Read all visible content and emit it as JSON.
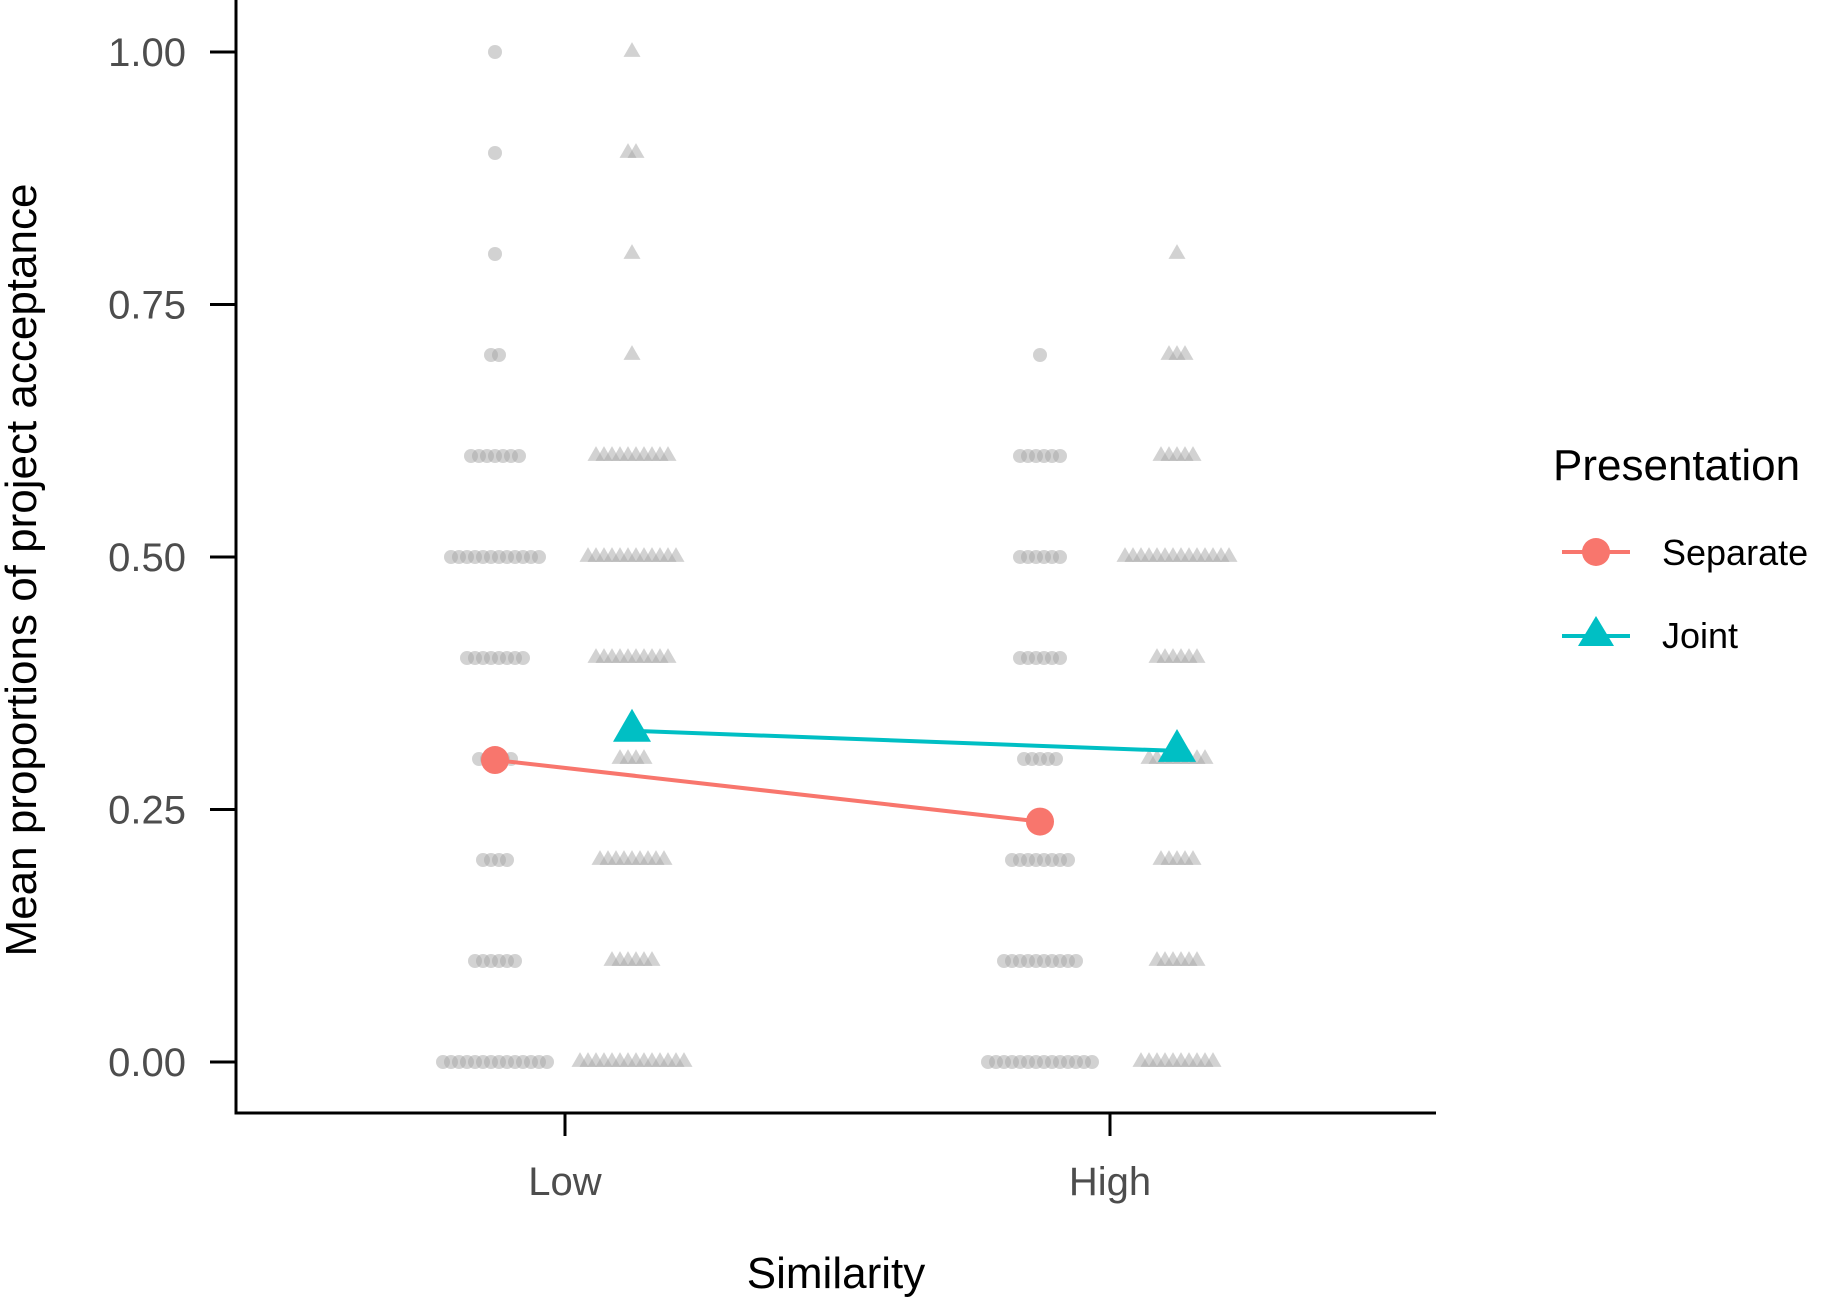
{
  "chart_data": {
    "type": "scatter",
    "title": "",
    "xlabel": "Similarity",
    "ylabel": "Mean proportions of project acceptance",
    "categories": [
      "Low",
      "High"
    ],
    "ylim": [
      -0.05,
      1.05
    ],
    "yticks": [
      0.0,
      0.25,
      0.5,
      0.75,
      1.0
    ],
    "ytick_labels": [
      "0.00",
      "0.25",
      "0.50",
      "0.75",
      "1.00"
    ],
    "grid": false,
    "legend": {
      "title": "Presentation",
      "placement": "right",
      "entries": [
        {
          "label": "Separate",
          "color": "#F8766D",
          "shape": "circle"
        },
        {
          "label": "Joint",
          "color": "#00BFC4",
          "shape": "triangle"
        }
      ]
    },
    "series": [
      {
        "name": "Separate",
        "color": "#F8766D",
        "shape": "circle",
        "values": [
          0.299,
          0.238
        ]
      },
      {
        "name": "Joint",
        "color": "#00BFC4",
        "shape": "triangle",
        "values": [
          0.328,
          0.308
        ]
      }
    ],
    "raw_points": {
      "color": "#a6a6a6",
      "groups": [
        {
          "category": "Low",
          "presentation": "Separate",
          "shape": "circle",
          "counts": [
            {
              "y": 0.0,
              "n": 14
            },
            {
              "y": 0.1,
              "n": 6
            },
            {
              "y": 0.2,
              "n": 4
            },
            {
              "y": 0.3,
              "n": 5
            },
            {
              "y": 0.4,
              "n": 8
            },
            {
              "y": 0.5,
              "n": 12
            },
            {
              "y": 0.6,
              "n": 7
            },
            {
              "y": 0.7,
              "n": 2
            },
            {
              "y": 0.8,
              "n": 1
            },
            {
              "y": 0.9,
              "n": 1
            },
            {
              "y": 1.0,
              "n": 1
            }
          ]
        },
        {
          "category": "Low",
          "presentation": "Joint",
          "shape": "triangle",
          "counts": [
            {
              "y": 0.0,
              "n": 14
            },
            {
              "y": 0.1,
              "n": 6
            },
            {
              "y": 0.2,
              "n": 9
            },
            {
              "y": 0.3,
              "n": 4
            },
            {
              "y": 0.4,
              "n": 10
            },
            {
              "y": 0.5,
              "n": 12
            },
            {
              "y": 0.6,
              "n": 10
            },
            {
              "y": 0.7,
              "n": 1
            },
            {
              "y": 0.8,
              "n": 1
            },
            {
              "y": 0.9,
              "n": 2
            },
            {
              "y": 1.0,
              "n": 1
            }
          ]
        },
        {
          "category": "High",
          "presentation": "Separate",
          "shape": "circle",
          "counts": [
            {
              "y": 0.0,
              "n": 14
            },
            {
              "y": 0.1,
              "n": 10
            },
            {
              "y": 0.2,
              "n": 8
            },
            {
              "y": 0.3,
              "n": 5
            },
            {
              "y": 0.4,
              "n": 6
            },
            {
              "y": 0.5,
              "n": 6
            },
            {
              "y": 0.6,
              "n": 6
            },
            {
              "y": 0.7,
              "n": 1
            }
          ]
        },
        {
          "category": "High",
          "presentation": "Joint",
          "shape": "triangle",
          "counts": [
            {
              "y": 0.0,
              "n": 10
            },
            {
              "y": 0.1,
              "n": 6
            },
            {
              "y": 0.2,
              "n": 5
            },
            {
              "y": 0.3,
              "n": 8
            },
            {
              "y": 0.4,
              "n": 6
            },
            {
              "y": 0.5,
              "n": 14
            },
            {
              "y": 0.6,
              "n": 5
            },
            {
              "y": 0.7,
              "n": 3
            },
            {
              "y": 0.8,
              "n": 1
            }
          ]
        }
      ]
    }
  }
}
